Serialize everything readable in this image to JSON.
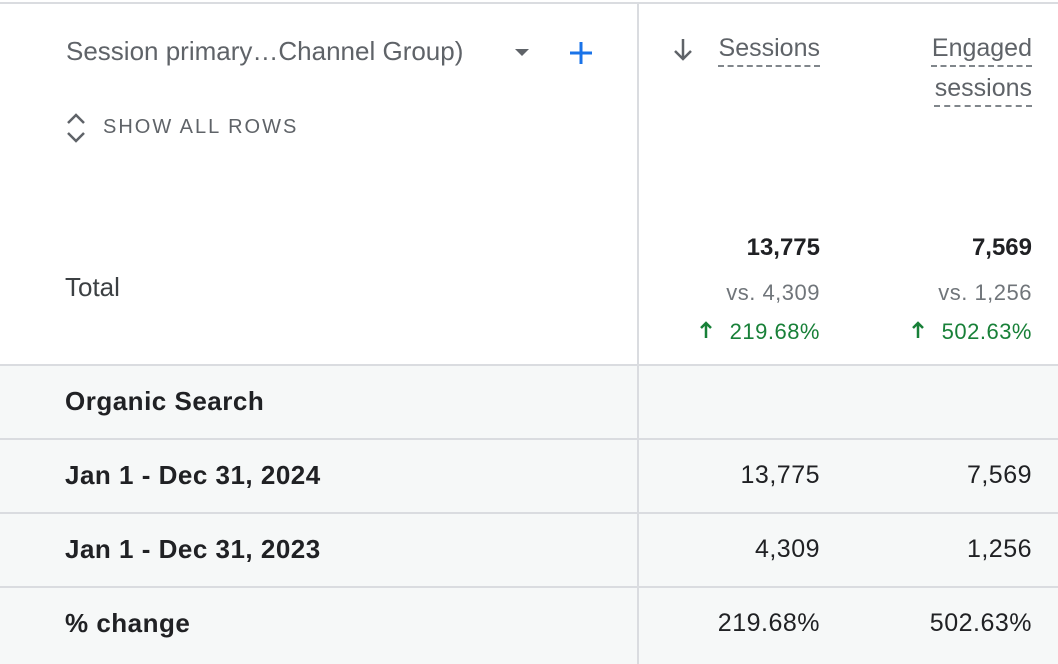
{
  "header": {
    "dimension": "Session primary…Channel Group)",
    "show_all_rows": "SHOW ALL ROWS",
    "columns": [
      "Sessions",
      "Engaged sessions"
    ]
  },
  "total": {
    "label": "Total",
    "values": [
      "13,775",
      "7,569"
    ],
    "comparisons": [
      "vs. 4,309",
      "vs. 1,256"
    ],
    "changes": [
      "219.68%",
      "502.63%"
    ]
  },
  "group": {
    "label": "Organic Search",
    "rows": [
      {
        "label": "Jan 1 - Dec 31, 2024",
        "values": [
          "13,775",
          "7,569"
        ]
      },
      {
        "label": "Jan 1 - Dec 31, 2023",
        "values": [
          "4,309",
          "1,256"
        ]
      },
      {
        "label": "% change",
        "values": [
          "219.68%",
          "502.63%"
        ]
      }
    ]
  }
}
